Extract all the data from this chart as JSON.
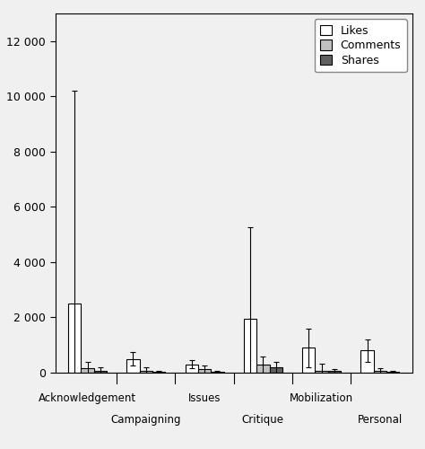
{
  "categories": [
    "Acknowledgement",
    "Campaigning",
    "Issues",
    "Critique",
    "Mobilization",
    "Personal"
  ],
  "likes": [
    2500,
    500,
    300,
    1950,
    900,
    800
  ],
  "comments": [
    150,
    80,
    120,
    300,
    80,
    50
  ],
  "shares": [
    80,
    30,
    20,
    200,
    60,
    20
  ],
  "likes_err": [
    7700,
    250,
    150,
    3300,
    700,
    400
  ],
  "comments_err": [
    250,
    100,
    130,
    300,
    250,
    100
  ],
  "shares_err": [
    100,
    30,
    30,
    200,
    80,
    30
  ],
  "likes_color": "#ffffff",
  "comments_color": "#c0c0c0",
  "shares_color": "#606060",
  "bar_edge_color": "#000000",
  "bar_width": 0.22,
  "ylim": [
    0,
    13000
  ],
  "yticks": [
    0,
    2000,
    4000,
    6000,
    8000,
    10000,
    12000
  ],
  "ytick_labels": [
    "0",
    "2 000",
    "4 000",
    "6 000",
    "8 000",
    "10 000",
    "12 000"
  ],
  "legend_labels": [
    "Likes",
    "Comments",
    "Shares"
  ],
  "row1_labels": [
    "Acknowledgement",
    "",
    "Issues",
    "",
    "Mobilization",
    ""
  ],
  "row2_labels": [
    "",
    "Campaigning",
    "",
    "Critique",
    "",
    "Personal"
  ],
  "bg_color": "#f0f0f0",
  "figsize": [
    4.74,
    5.0
  ],
  "dpi": 100
}
